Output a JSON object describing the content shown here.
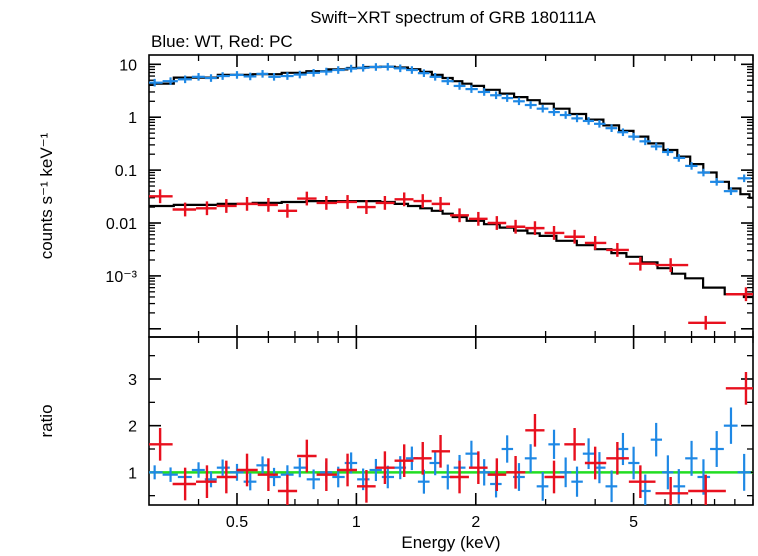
{
  "chart_data": [
    {
      "type": "scatter",
      "panel": "spectrum",
      "title": "Swift−XRT spectrum of GRB 180111A",
      "subtitle": "Blue: WT, Red: PC",
      "xlabel": "",
      "ylabel": "counts s⁻¹ keV⁻¹",
      "xscale": "log",
      "yscale": "log",
      "xlim": [
        0.3,
        10
      ],
      "ylim": [
        7e-05,
        15
      ],
      "x_ticks": [
        0.5,
        1,
        2,
        5
      ],
      "y_ticks": [
        {
          "value": 10,
          "label": "10"
        },
        {
          "value": 1,
          "label": "1"
        },
        {
          "value": 0.1,
          "label": "0.1"
        },
        {
          "value": 0.01,
          "label": "0.01"
        },
        {
          "value": 0.001,
          "label": "10⁻³"
        }
      ],
      "colors": {
        "wt": "#1E88E5",
        "pc": "#E8101E",
        "model": "#000000"
      },
      "series": [
        {
          "name": "WT",
          "color": "#1E88E5",
          "x": [
            0.31,
            0.34,
            0.37,
            0.4,
            0.43,
            0.46,
            0.5,
            0.54,
            0.58,
            0.62,
            0.67,
            0.72,
            0.78,
            0.84,
            0.9,
            0.97,
            1.04,
            1.12,
            1.2,
            1.29,
            1.38,
            1.48,
            1.58,
            1.7,
            1.82,
            1.95,
            2.1,
            2.25,
            2.4,
            2.57,
            2.75,
            2.95,
            3.15,
            3.37,
            3.6,
            3.85,
            4.1,
            4.4,
            4.7,
            5.0,
            5.35,
            5.7,
            6.1,
            6.5,
            7.0,
            7.5,
            8.1,
            8.8,
            9.5
          ],
          "y": [
            4.5,
            4.8,
            5.2,
            5.8,
            5.5,
            6.0,
            6.3,
            5.9,
            6.6,
            5.8,
            6.0,
            6.4,
            6.9,
            7.3,
            7.8,
            8.3,
            8.6,
            8.9,
            9.0,
            8.4,
            7.8,
            6.8,
            5.8,
            4.8,
            3.9,
            3.4,
            3.0,
            2.6,
            2.3,
            2.0,
            1.7,
            1.45,
            1.25,
            1.1,
            0.95,
            0.85,
            0.75,
            0.62,
            0.52,
            0.43,
            0.35,
            0.28,
            0.22,
            0.17,
            0.12,
            0.09,
            0.06,
            0.04,
            0.07
          ]
        },
        {
          "name": "PC",
          "color": "#E8101E",
          "x": [
            0.32,
            0.37,
            0.42,
            0.47,
            0.53,
            0.6,
            0.67,
            0.75,
            0.84,
            0.95,
            1.06,
            1.18,
            1.32,
            1.47,
            1.63,
            1.82,
            2.03,
            2.26,
            2.52,
            2.82,
            3.15,
            3.55,
            4.0,
            4.55,
            5.2,
            6.2,
            7.6,
            9.6
          ],
          "y": [
            0.032,
            0.018,
            0.019,
            0.021,
            0.023,
            0.022,
            0.017,
            0.029,
            0.024,
            0.025,
            0.02,
            0.024,
            0.028,
            0.026,
            0.023,
            0.014,
            0.012,
            0.01,
            0.0085,
            0.008,
            0.0065,
            0.0055,
            0.0042,
            0.0031,
            0.0017,
            0.0016,
            0.00013,
            0.00045
          ]
        },
        {
          "name": "",
          "color": "#000000",
          "x": [
            0.3,
            0.4,
            0.5,
            0.6,
            0.7,
            0.8,
            0.9,
            1.0,
            1.1,
            1.2,
            1.3,
            1.4,
            1.5,
            1.6,
            1.7,
            1.8,
            1.9,
            2.0,
            2.2,
            2.4,
            2.6,
            2.8,
            3.0,
            3.3,
            3.6,
            4.0,
            4.4,
            4.8,
            5.2,
            5.7,
            6.2,
            6.7,
            7.2,
            7.8,
            8.4,
            9.0,
            9.6,
            10.0
          ],
          "y": [
            4.3,
            5.6,
            6.3,
            6.5,
            6.9,
            7.4,
            8.0,
            8.5,
            8.9,
            9.0,
            8.7,
            8.1,
            7.2,
            6.3,
            5.5,
            4.8,
            4.3,
            3.9,
            3.3,
            2.8,
            2.4,
            2.1,
            1.8,
            1.45,
            1.15,
            0.9,
            0.7,
            0.55,
            0.43,
            0.32,
            0.24,
            0.18,
            0.13,
            0.09,
            0.06,
            0.045,
            0.035,
            0.03
          ]
        },
        {
          "name": "",
          "color": "#000000",
          "x": [
            0.3,
            0.4,
            0.5,
            0.6,
            0.7,
            0.8,
            0.9,
            1.0,
            1.1,
            1.2,
            1.3,
            1.4,
            1.5,
            1.6,
            1.7,
            1.8,
            2.0,
            2.2,
            2.4,
            2.6,
            2.8,
            3.0,
            3.4,
            3.8,
            4.2,
            4.6,
            5.0,
            5.5,
            6.0,
            6.5,
            7.0,
            8.0,
            9.0,
            10.0
          ],
          "y": [
            0.021,
            0.022,
            0.023,
            0.024,
            0.025,
            0.026,
            0.026,
            0.026,
            0.026,
            0.025,
            0.023,
            0.021,
            0.019,
            0.017,
            0.015,
            0.013,
            0.011,
            0.0095,
            0.0082,
            0.0072,
            0.0064,
            0.0057,
            0.0046,
            0.0038,
            0.0032,
            0.0027,
            0.0023,
            0.0018,
            0.0014,
            0.0011,
            0.0009,
            0.0006,
            0.00045,
            0.0004
          ]
        }
      ]
    },
    {
      "type": "scatter",
      "panel": "ratio",
      "xlabel": "Energy (keV)",
      "ylabel": "ratio",
      "xscale": "log",
      "xlim": [
        0.3,
        10
      ],
      "ylim": [
        0.3,
        3.9
      ],
      "x_ticks": [
        {
          "value": 0.5,
          "label": "0.5"
        },
        {
          "value": 1,
          "label": "1"
        },
        {
          "value": 2,
          "label": "2"
        },
        {
          "value": 5,
          "label": "5"
        }
      ],
      "y_ticks": [
        {
          "value": 1,
          "label": "1"
        },
        {
          "value": 2,
          "label": "2"
        },
        {
          "value": 3,
          "label": "3"
        }
      ],
      "reference_line": {
        "y": 1,
        "color": "#22DD22"
      },
      "series": [
        {
          "name": "WT",
          "color": "#1E88E5",
          "x": [
            0.31,
            0.34,
            0.37,
            0.4,
            0.43,
            0.46,
            0.5,
            0.54,
            0.58,
            0.62,
            0.67,
            0.72,
            0.78,
            0.84,
            0.9,
            0.97,
            1.04,
            1.12,
            1.2,
            1.29,
            1.38,
            1.48,
            1.58,
            1.7,
            1.82,
            1.95,
            2.1,
            2.25,
            2.4,
            2.57,
            2.75,
            2.95,
            3.15,
            3.37,
            3.6,
            3.85,
            4.1,
            4.4,
            4.7,
            5.0,
            5.35,
            5.7,
            6.1,
            6.5,
            7.0,
            7.5,
            8.1,
            8.8,
            9.5
          ],
          "y": [
            1.0,
            0.95,
            0.9,
            1.05,
            0.85,
            1.1,
            1.0,
            0.8,
            1.15,
            0.9,
            0.95,
            1.1,
            0.85,
            1.0,
            0.9,
            1.2,
            0.85,
            1.05,
            0.9,
            1.1,
            1.3,
            0.8,
            1.2,
            0.9,
            1.1,
            1.4,
            1.0,
            0.75,
            1.5,
            0.9,
            1.3,
            0.7,
            1.6,
            1.0,
            0.8,
            1.4,
            1.1,
            0.7,
            1.5,
            1.2,
            0.6,
            1.7,
            1.0,
            0.7,
            1.3,
            0.9,
            1.5,
            2.0,
            1.0
          ]
        },
        {
          "name": "PC",
          "color": "#E8101E",
          "x": [
            0.32,
            0.37,
            0.42,
            0.47,
            0.53,
            0.6,
            0.67,
            0.75,
            0.84,
            0.95,
            1.06,
            1.18,
            1.32,
            1.47,
            1.63,
            1.82,
            2.03,
            2.26,
            2.52,
            2.82,
            3.15,
            3.55,
            4.0,
            4.55,
            5.2,
            6.2,
            7.6,
            9.6
          ],
          "y": [
            1.6,
            0.75,
            0.8,
            0.9,
            1.05,
            0.95,
            0.6,
            1.35,
            0.95,
            1.05,
            0.7,
            1.1,
            1.25,
            1.3,
            1.45,
            0.9,
            1.1,
            0.95,
            1.0,
            1.9,
            0.9,
            1.6,
            1.2,
            1.3,
            0.8,
            0.55,
            0.6,
            2.8
          ]
        }
      ]
    }
  ]
}
